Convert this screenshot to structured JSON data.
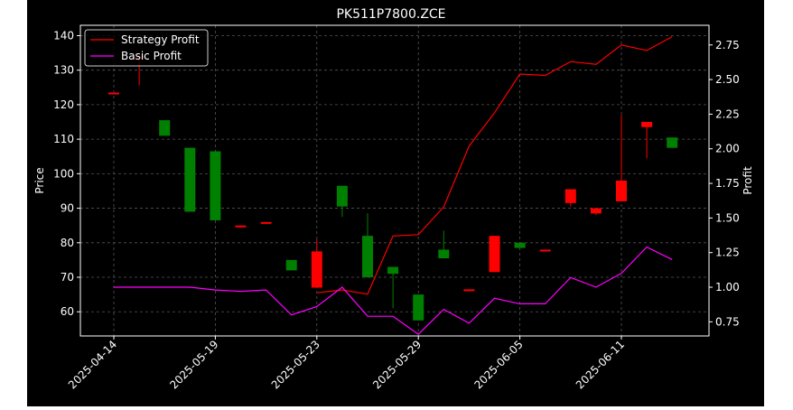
{
  "chart_data": {
    "type": "candlestick",
    "title": "PK511P7800.ZCE",
    "xlabel": "",
    "ylabel": "Price",
    "y2label": "Profit",
    "ylim": [
      53,
      143
    ],
    "y2lim": [
      0.648,
      2.892
    ],
    "y_ticks": [
      60,
      70,
      80,
      90,
      100,
      110,
      120,
      130,
      140
    ],
    "y2_ticks": [
      0.75,
      1.0,
      1.25,
      1.5,
      1.75,
      2.0,
      2.25,
      2.5,
      2.75
    ],
    "x_ticks": [
      {
        "index": 0,
        "label": "2025-04-14"
      },
      {
        "index": 4,
        "label": "2025-05-19"
      },
      {
        "index": 8,
        "label": "2025-05-23"
      },
      {
        "index": 12,
        "label": "2025-05-29"
      },
      {
        "index": 16,
        "label": "2025-06-05"
      },
      {
        "index": 20,
        "label": "2025-06-11"
      }
    ],
    "grid": true,
    "legend_position": "top-left",
    "colors": {
      "background": "#000000",
      "up": "#ff0000",
      "down": "#008000",
      "strategy": "#ff0000",
      "basic": "#ff00ff",
      "grid": "#555555",
      "axes": "#ffffff"
    },
    "candles": [
      {
        "open": 123.5,
        "close": 123.5,
        "high": 123.5,
        "low": 123.5
      },
      {
        "open": 134.0,
        "close": 134.0,
        "high": 134.0,
        "low": 125.6
      },
      {
        "open": 115.5,
        "close": 111.0,
        "high": 115.5,
        "low": 111.0
      },
      {
        "open": 107.5,
        "close": 89.0,
        "high": 107.5,
        "low": 89.0
      },
      {
        "open": 106.5,
        "close": 86.5,
        "high": 106.5,
        "low": 86.5
      },
      {
        "open": 84.5,
        "close": 85.0,
        "high": 85.0,
        "low": 84.5
      },
      {
        "open": 86.0,
        "close": 86.0,
        "high": 86.0,
        "low": 86.0
      },
      {
        "open": 75.0,
        "close": 72.0,
        "high": 75.0,
        "low": 72.0
      },
      {
        "open": 67.0,
        "close": 77.5,
        "high": 81.0,
        "low": 67.0
      },
      {
        "open": 96.5,
        "close": 90.5,
        "high": 96.5,
        "low": 87.5
      },
      {
        "open": 82.0,
        "close": 70.0,
        "high": 88.5,
        "low": 70.0
      },
      {
        "open": 73.0,
        "close": 71.0,
        "high": 73.0,
        "low": 61.0
      },
      {
        "open": 65.0,
        "close": 57.5,
        "high": 65.0,
        "low": 57.5
      },
      {
        "open": 78.0,
        "close": 75.5,
        "high": 83.5,
        "low": 75.5
      },
      {
        "open": 66.5,
        "close": 66.5,
        "high": 66.5,
        "low": 66.5
      },
      {
        "open": 71.5,
        "close": 82.0,
        "high": 82.0,
        "low": 71.5
      },
      {
        "open": 80.0,
        "close": 78.5,
        "high": 80.0,
        "low": 78.5
      },
      {
        "open": 78.0,
        "close": 78.0,
        "high": 78.0,
        "low": 78.0
      },
      {
        "open": 91.5,
        "close": 95.5,
        "high": 95.5,
        "low": 90.5
      },
      {
        "open": 88.5,
        "close": 90.0,
        "high": 90.0,
        "low": 88.0
      },
      {
        "open": 92.0,
        "close": 98.0,
        "high": 117.0,
        "low": 92.0
      },
      {
        "open": 113.5,
        "close": 115.0,
        "high": 115.0,
        "low": 104.5
      },
      {
        "open": 110.5,
        "close": 107.5,
        "high": 110.5,
        "low": 107.5
      }
    ],
    "series": [
      {
        "name": "Strategy Profit",
        "axis": "right",
        "values": [
          null,
          null,
          null,
          null,
          null,
          null,
          null,
          null,
          0.96,
          0.98,
          0.95,
          1.37,
          1.38,
          1.58,
          2.02,
          2.26,
          2.54,
          2.53,
          2.63,
          2.61,
          2.75,
          2.71,
          2.81
        ]
      },
      {
        "name": "Basic Profit",
        "axis": "right",
        "values": [
          1.0,
          1.0,
          1.0,
          1.0,
          0.98,
          0.97,
          0.98,
          0.8,
          0.86,
          1.0,
          0.79,
          0.79,
          0.66,
          0.84,
          0.74,
          0.92,
          0.88,
          0.88,
          1.07,
          1.0,
          1.1,
          1.29,
          1.2
        ]
      }
    ]
  }
}
